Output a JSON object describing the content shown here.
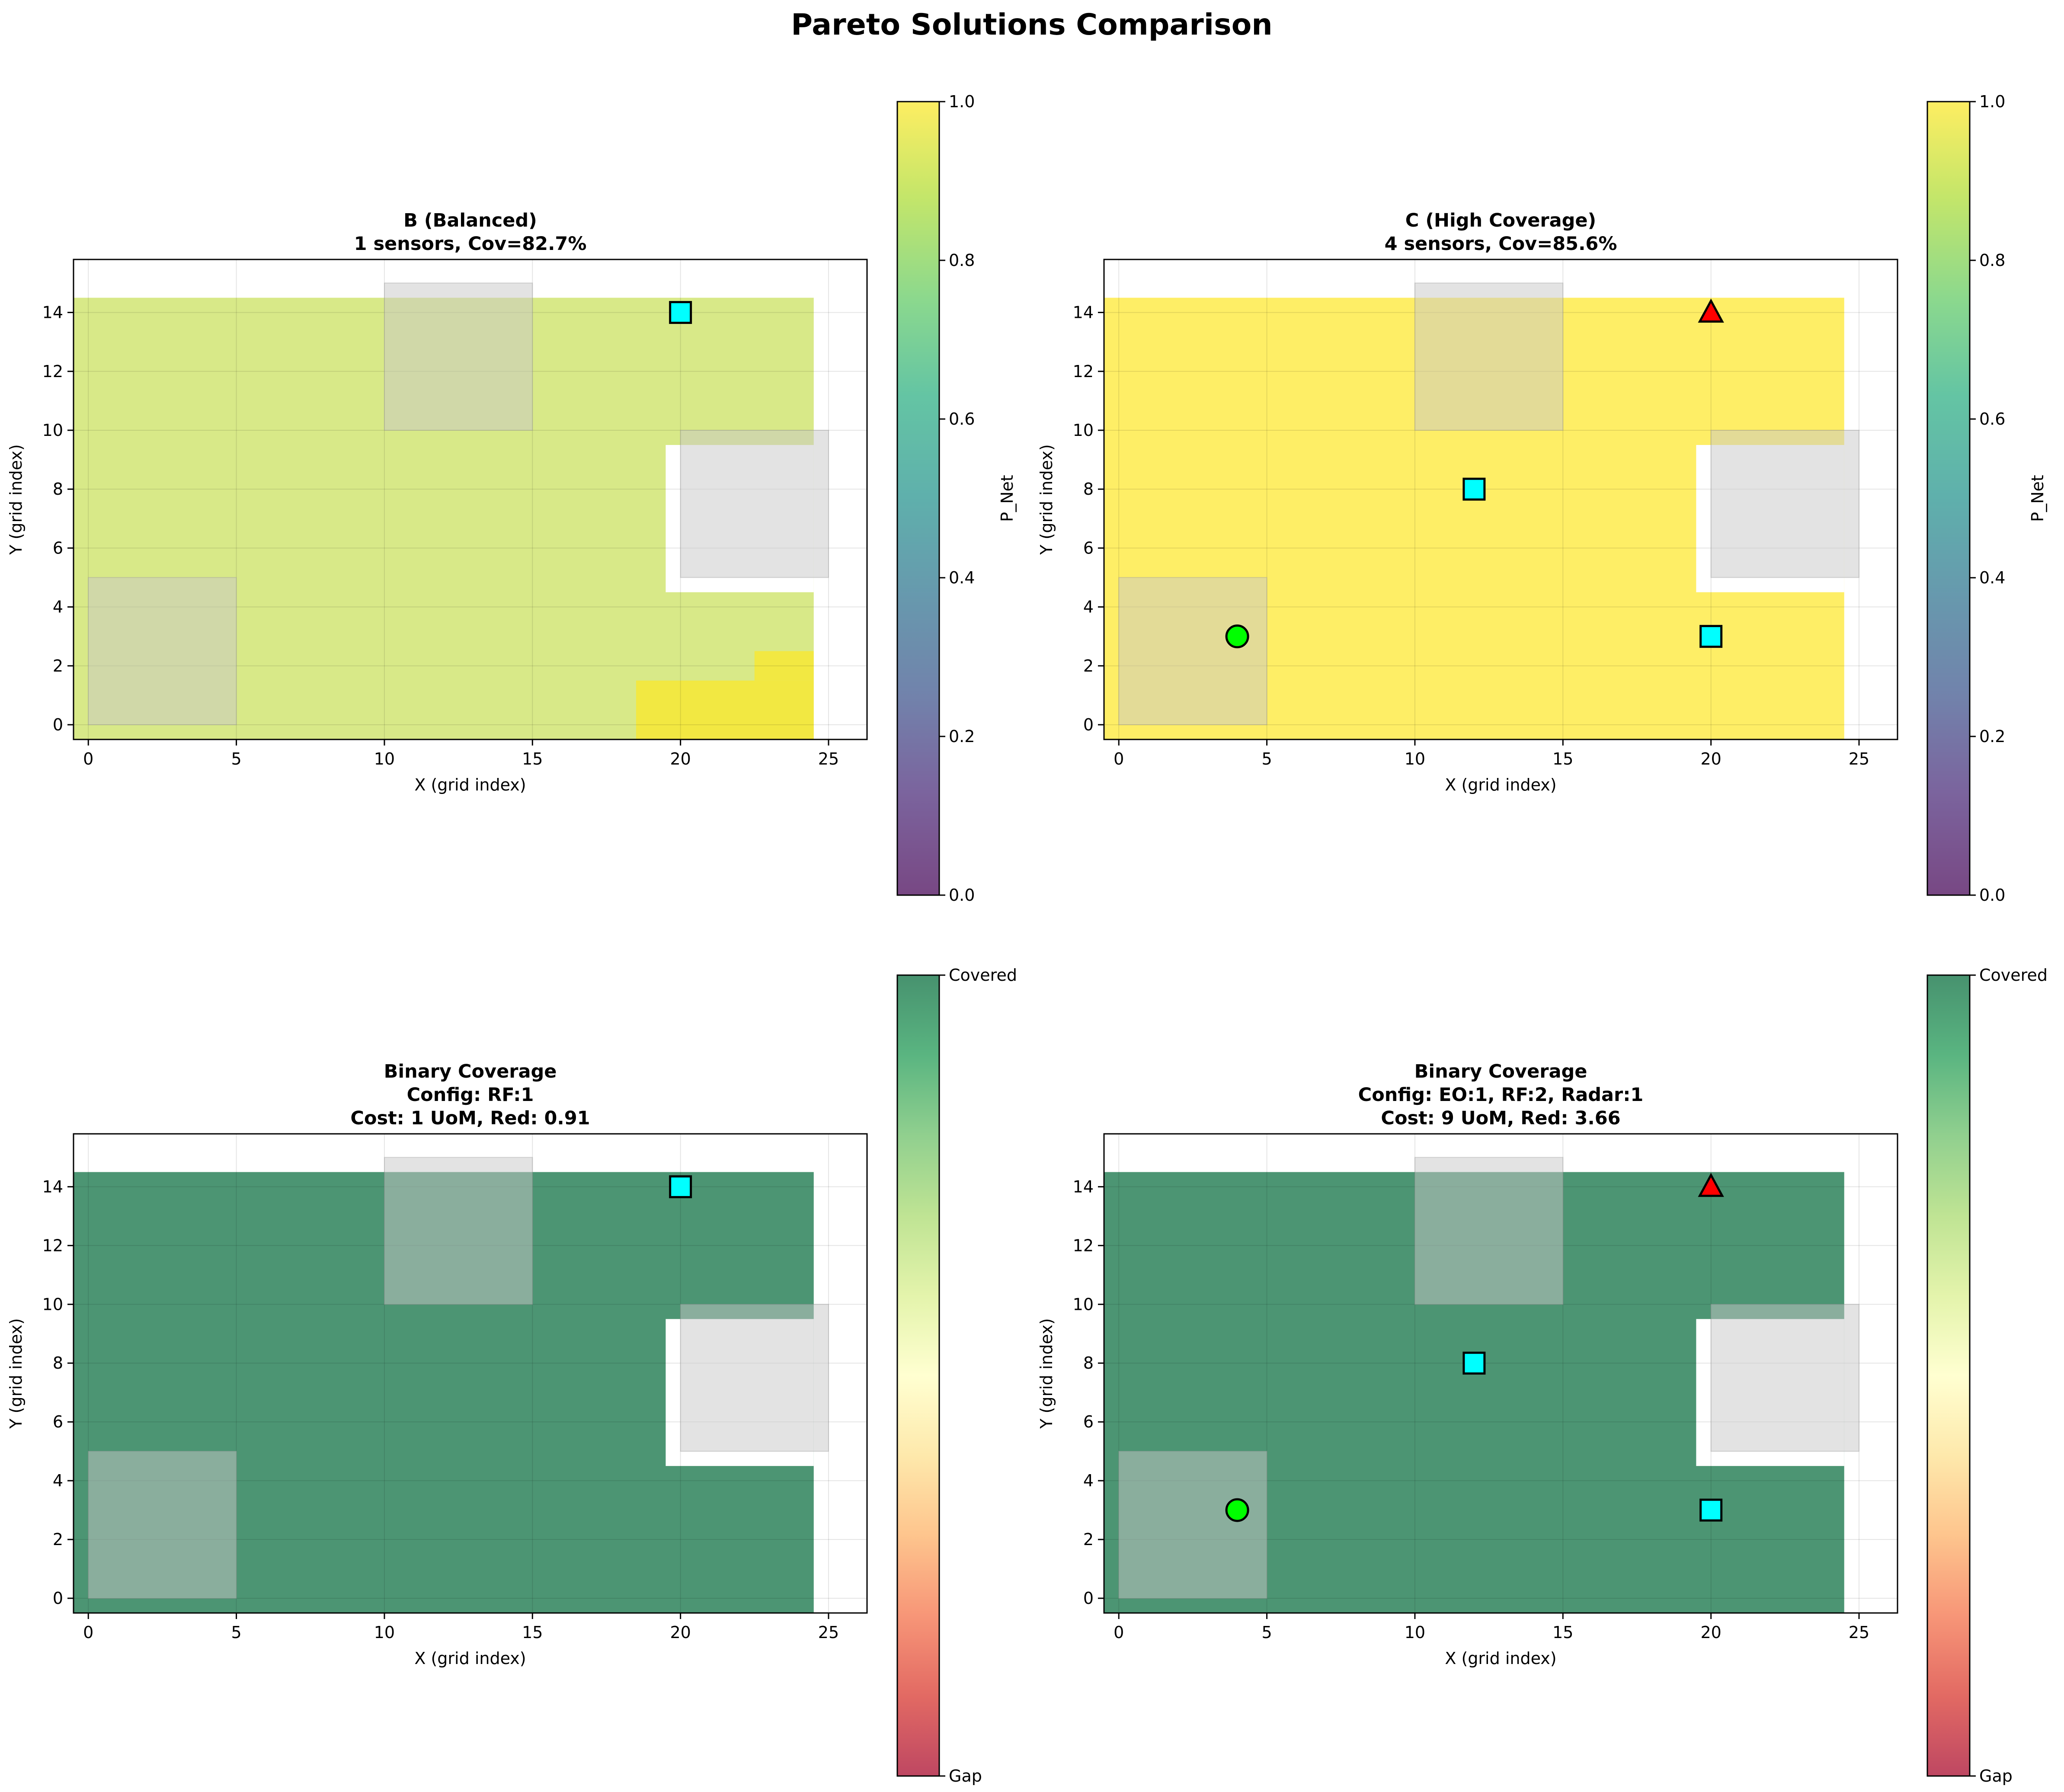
{
  "figure": {
    "title": "Pareto Solutions Comparison"
  },
  "colors": {
    "yellow_high": "#fde725",
    "yellow_green": "#c8df55",
    "viridis_mid": "#21918c",
    "viridis_low": "#440154",
    "covered_green": "#006837",
    "gap_red": "#a50026",
    "obstacle_gray": "#c8c8c8",
    "eo_marker": "#00ff00",
    "rf_marker": "#00ffff",
    "radar_marker": "#ff0000"
  },
  "chart_data": [
    {
      "id": "B",
      "type": "heatmap",
      "title_line1": "B (Balanced)",
      "title_line2": "1 sensors, Cov=82.7%",
      "title_line3": "",
      "xlabel": "X (grid index)",
      "ylabel": "Y (grid index)",
      "xlim": [
        -0.5,
        26.3
      ],
      "ylim": [
        -0.5,
        15.8
      ],
      "xticks": [
        0,
        5,
        10,
        15,
        20,
        25
      ],
      "yticks": [
        0,
        2,
        4,
        6,
        8,
        10,
        12,
        14
      ],
      "grid": true,
      "coverage_cells": [
        {
          "x0": -0.5,
          "x1": 24.5,
          "y0": -0.5,
          "y1": 14.5,
          "value": 0.88
        },
        {
          "x0": 18.5,
          "x1": 24.5,
          "y0": -0.5,
          "y1": 1.5,
          "value": 1.0
        },
        {
          "x0": 22.5,
          "x1": 24.5,
          "y0": 1.5,
          "y1": 2.5,
          "value": 1.0
        }
      ],
      "gap_cells": [
        {
          "x0": 19.5,
          "x1": 24.5,
          "y0": 4.5,
          "y1": 9.5
        }
      ],
      "obstacles": [
        {
          "x0": 10,
          "x1": 15,
          "y0": 10,
          "y1": 15
        },
        {
          "x0": 20,
          "x1": 25,
          "y0": 5,
          "y1": 10
        },
        {
          "x0": 0,
          "x1": 5,
          "y0": 0,
          "y1": 5
        }
      ],
      "sensors": [
        {
          "type": "RF",
          "x": 20,
          "y": 14
        }
      ],
      "colorbar": {
        "kind": "viridis",
        "label": "P_Net",
        "ticks": [
          "0.0",
          "0.2",
          "0.4",
          "0.6",
          "0.8",
          "1.0"
        ],
        "range": [
          0,
          1
        ]
      }
    },
    {
      "id": "C",
      "type": "heatmap",
      "title_line1": "C (High Coverage)",
      "title_line2": "4 sensors, Cov=85.6%",
      "title_line3": "",
      "xlabel": "X (grid index)",
      "ylabel": "Y (grid index)",
      "xlim": [
        -0.5,
        26.3
      ],
      "ylim": [
        -0.5,
        15.8
      ],
      "xticks": [
        0,
        5,
        10,
        15,
        20,
        25
      ],
      "yticks": [
        0,
        2,
        4,
        6,
        8,
        10,
        12,
        14
      ],
      "grid": true,
      "coverage_cells": [
        {
          "x0": -0.5,
          "x1": 24.5,
          "y0": -0.5,
          "y1": 14.5,
          "value": 1.0
        }
      ],
      "gap_cells": [
        {
          "x0": 19.5,
          "x1": 24.5,
          "y0": 4.5,
          "y1": 9.5
        }
      ],
      "obstacles": [
        {
          "x0": 10,
          "x1": 15,
          "y0": 10,
          "y1": 15
        },
        {
          "x0": 20,
          "x1": 25,
          "y0": 5,
          "y1": 10
        },
        {
          "x0": 0,
          "x1": 5,
          "y0": 0,
          "y1": 5
        }
      ],
      "sensors": [
        {
          "type": "Radar",
          "x": 20,
          "y": 14
        },
        {
          "type": "RF",
          "x": 12,
          "y": 8
        },
        {
          "type": "RF",
          "x": 20,
          "y": 3
        },
        {
          "type": "EO",
          "x": 4,
          "y": 3
        }
      ],
      "colorbar": {
        "kind": "viridis",
        "label": "P_Net",
        "ticks": [
          "0.0",
          "0.2",
          "0.4",
          "0.6",
          "0.8",
          "1.0"
        ],
        "range": [
          0,
          1
        ]
      }
    },
    {
      "id": "B-binary",
      "type": "heatmap",
      "title_line1": "Binary Coverage",
      "title_line2": "Config: RF:1",
      "title_line3": "Cost: 1 UoM, Red: 0.91",
      "xlabel": "X (grid index)",
      "ylabel": "Y (grid index)",
      "xlim": [
        -0.5,
        26.3
      ],
      "ylim": [
        -0.5,
        15.8
      ],
      "xticks": [
        0,
        5,
        10,
        15,
        20,
        25
      ],
      "yticks": [
        0,
        2,
        4,
        6,
        8,
        10,
        12,
        14
      ],
      "grid": true,
      "coverage_cells": [
        {
          "x0": -0.5,
          "x1": 24.5,
          "y0": -0.5,
          "y1": 14.5,
          "value": 1
        }
      ],
      "gap_cells": [
        {
          "x0": 19.5,
          "x1": 24.5,
          "y0": 4.5,
          "y1": 9.5
        }
      ],
      "obstacles": [
        {
          "x0": 10,
          "x1": 15,
          "y0": 10,
          "y1": 15
        },
        {
          "x0": 20,
          "x1": 25,
          "y0": 5,
          "y1": 10
        },
        {
          "x0": 0,
          "x1": 5,
          "y0": 0,
          "y1": 5
        }
      ],
      "sensors": [
        {
          "type": "RF",
          "x": 20,
          "y": 14
        }
      ],
      "colorbar": {
        "kind": "binary",
        "label": "",
        "top_label": "Covered",
        "bottom_label": "Gap"
      }
    },
    {
      "id": "C-binary",
      "type": "heatmap",
      "title_line1": "Binary Coverage",
      "title_line2": "Config: EO:1, RF:2, Radar:1",
      "title_line3": "Cost: 9 UoM, Red: 3.66",
      "xlabel": "X (grid index)",
      "ylabel": "Y (grid index)",
      "xlim": [
        -0.5,
        26.3
      ],
      "ylim": [
        -0.5,
        15.8
      ],
      "xticks": [
        0,
        5,
        10,
        15,
        20,
        25
      ],
      "yticks": [
        0,
        2,
        4,
        6,
        8,
        10,
        12,
        14
      ],
      "grid": true,
      "coverage_cells": [
        {
          "x0": -0.5,
          "x1": 24.5,
          "y0": -0.5,
          "y1": 14.5,
          "value": 1
        }
      ],
      "gap_cells": [
        {
          "x0": 19.5,
          "x1": 24.5,
          "y0": 4.5,
          "y1": 9.5
        }
      ],
      "obstacles": [
        {
          "x0": 10,
          "x1": 15,
          "y0": 10,
          "y1": 15
        },
        {
          "x0": 20,
          "x1": 25,
          "y0": 5,
          "y1": 10
        },
        {
          "x0": 0,
          "x1": 5,
          "y0": 0,
          "y1": 5
        }
      ],
      "sensors": [
        {
          "type": "Radar",
          "x": 20,
          "y": 14
        },
        {
          "type": "RF",
          "x": 12,
          "y": 8
        },
        {
          "type": "RF",
          "x": 20,
          "y": 3
        },
        {
          "type": "EO",
          "x": 4,
          "y": 3
        }
      ],
      "colorbar": {
        "kind": "binary",
        "label": "",
        "top_label": "Covered",
        "bottom_label": "Gap"
      }
    }
  ]
}
